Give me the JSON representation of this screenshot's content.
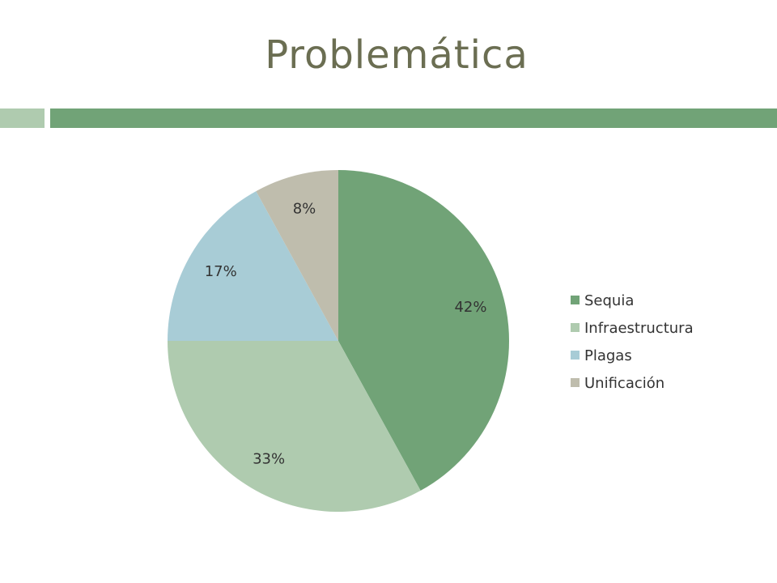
{
  "slide": {
    "title": "Problemática",
    "band_colors": {
      "left": "#afcbaf",
      "right": "#71a377"
    }
  },
  "chart_data": {
    "type": "pie",
    "categories": [
      "Sequia",
      "Infraestructura",
      "Plagas",
      "Unificación"
    ],
    "values": [
      42,
      33,
      17,
      8
    ],
    "labels": [
      "42%",
      "33%",
      "17%",
      "8%"
    ],
    "colors": [
      "#71a377",
      "#afcbaf",
      "#a8ccd6",
      "#bfbdad"
    ],
    "legend": "right",
    "start_angle": "12 o'clock",
    "direction": "clockwise"
  }
}
